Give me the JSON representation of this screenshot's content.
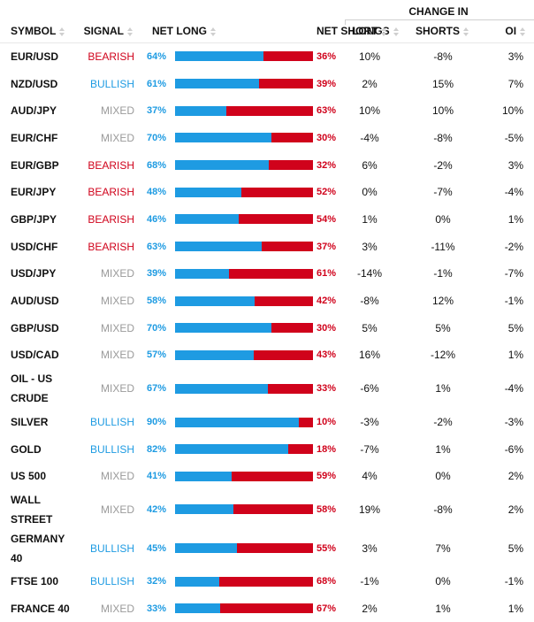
{
  "header": {
    "group_label": "CHANGE IN",
    "columns": {
      "symbol": "SYMBOL",
      "signal": "SIGNAL",
      "net_long": "NET LONG",
      "net_short": "NET SHORT",
      "longs": "LONGS",
      "shorts": "SHORTS",
      "oi": "OI"
    }
  },
  "colors": {
    "long": "#1e9be2",
    "short": "#d0021b",
    "bearish": "#d0021b",
    "bullish": "#1e9be2",
    "mixed": "#9a9a9a"
  },
  "rows": [
    {
      "symbol": "EUR/USD",
      "signal": "BEARISH",
      "net_long": "64%",
      "net_long_value": 64,
      "net_short": "36%",
      "longs": "10%",
      "shorts": "-8%",
      "oi": "3%"
    },
    {
      "symbol": "NZD/USD",
      "signal": "BULLISH",
      "net_long": "61%",
      "net_long_value": 61,
      "net_short": "39%",
      "longs": "2%",
      "shorts": "15%",
      "oi": "7%"
    },
    {
      "symbol": "AUD/JPY",
      "signal": "MIXED",
      "net_long": "37%",
      "net_long_value": 37,
      "net_short": "63%",
      "longs": "10%",
      "shorts": "10%",
      "oi": "10%"
    },
    {
      "symbol": "EUR/CHF",
      "signal": "MIXED",
      "net_long": "70%",
      "net_long_value": 70,
      "net_short": "30%",
      "longs": "-4%",
      "shorts": "-8%",
      "oi": "-5%"
    },
    {
      "symbol": "EUR/GBP",
      "signal": "BEARISH",
      "net_long": "68%",
      "net_long_value": 68,
      "net_short": "32%",
      "longs": "6%",
      "shorts": "-2%",
      "oi": "3%"
    },
    {
      "symbol": "EUR/JPY",
      "signal": "BEARISH",
      "net_long": "48%",
      "net_long_value": 48,
      "net_short": "52%",
      "longs": "0%",
      "shorts": "-7%",
      "oi": "-4%"
    },
    {
      "symbol": "GBP/JPY",
      "signal": "BEARISH",
      "net_long": "46%",
      "net_long_value": 46,
      "net_short": "54%",
      "longs": "1%",
      "shorts": "0%",
      "oi": "1%"
    },
    {
      "symbol": "USD/CHF",
      "signal": "BEARISH",
      "net_long": "63%",
      "net_long_value": 63,
      "net_short": "37%",
      "longs": "3%",
      "shorts": "-11%",
      "oi": "-2%"
    },
    {
      "symbol": "USD/JPY",
      "signal": "MIXED",
      "net_long": "39%",
      "net_long_value": 39,
      "net_short": "61%",
      "longs": "-14%",
      "shorts": "-1%",
      "oi": "-7%"
    },
    {
      "symbol": "AUD/USD",
      "signal": "MIXED",
      "net_long": "58%",
      "net_long_value": 58,
      "net_short": "42%",
      "longs": "-8%",
      "shorts": "12%",
      "oi": "-1%"
    },
    {
      "symbol": "GBP/USD",
      "signal": "MIXED",
      "net_long": "70%",
      "net_long_value": 70,
      "net_short": "30%",
      "longs": "5%",
      "shorts": "5%",
      "oi": "5%"
    },
    {
      "symbol": "USD/CAD",
      "signal": "MIXED",
      "net_long": "57%",
      "net_long_value": 57,
      "net_short": "43%",
      "longs": "16%",
      "shorts": "-12%",
      "oi": "1%"
    },
    {
      "symbol": "OIL - US CRUDE",
      "signal": "MIXED",
      "net_long": "67%",
      "net_long_value": 67,
      "net_short": "33%",
      "longs": "-6%",
      "shorts": "1%",
      "oi": "-4%"
    },
    {
      "symbol": "SILVER",
      "signal": "BULLISH",
      "net_long": "90%",
      "net_long_value": 90,
      "net_short": "10%",
      "longs": "-3%",
      "shorts": "-2%",
      "oi": "-3%"
    },
    {
      "symbol": "GOLD",
      "signal": "BULLISH",
      "net_long": "82%",
      "net_long_value": 82,
      "net_short": "18%",
      "longs": "-7%",
      "shorts": "1%",
      "oi": "-6%"
    },
    {
      "symbol": "US 500",
      "signal": "MIXED",
      "net_long": "41%",
      "net_long_value": 41,
      "net_short": "59%",
      "longs": "4%",
      "shorts": "0%",
      "oi": "2%"
    },
    {
      "symbol": "WALL STREET",
      "signal": "MIXED",
      "net_long": "42%",
      "net_long_value": 42,
      "net_short": "58%",
      "longs": "19%",
      "shorts": "-8%",
      "oi": "2%"
    },
    {
      "symbol": "GERMANY 40",
      "signal": "BULLISH",
      "net_long": "45%",
      "net_long_value": 45,
      "net_short": "55%",
      "longs": "3%",
      "shorts": "7%",
      "oi": "5%"
    },
    {
      "symbol": "FTSE 100",
      "signal": "BULLISH",
      "net_long": "32%",
      "net_long_value": 32,
      "net_short": "68%",
      "longs": "-1%",
      "shorts": "0%",
      "oi": "-1%"
    },
    {
      "symbol": "FRANCE 40",
      "signal": "MIXED",
      "net_long": "33%",
      "net_long_value": 33,
      "net_short": "67%",
      "longs": "2%",
      "shorts": "1%",
      "oi": "1%"
    }
  ]
}
